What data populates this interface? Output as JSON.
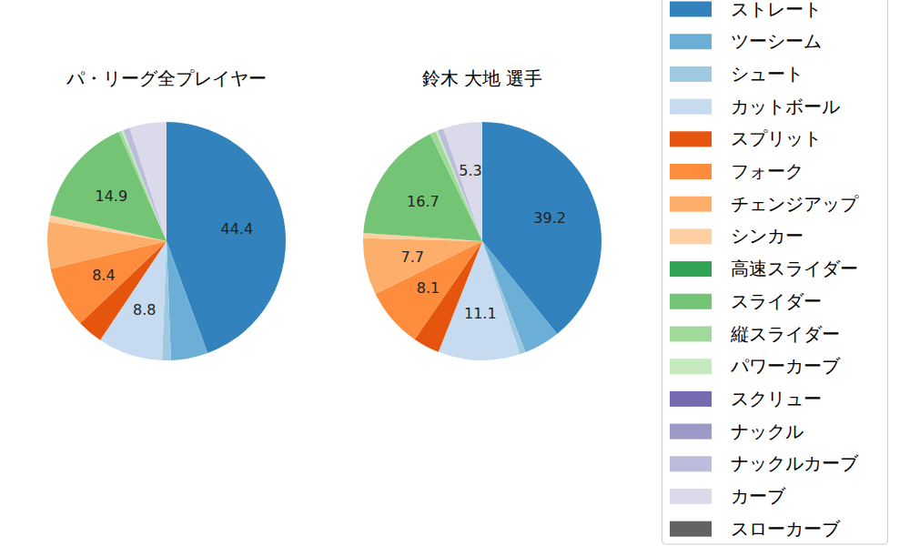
{
  "chart_data": [
    {
      "type": "pie",
      "title": "パ・リーグ全プレイヤー",
      "categories": [
        "ストレート",
        "ツーシーム",
        "シュート",
        "カットボール",
        "スプリット",
        "フォーク",
        "チェンジアップ",
        "シンカー",
        "高速スライダー",
        "スライダー",
        "縦スライダー",
        "パワーカーブ",
        "スクリュー",
        "ナックル",
        "ナックルカーブ",
        "カーブ",
        "スローカーブ"
      ],
      "values": [
        44.4,
        5.0,
        1.2,
        8.8,
        3.5,
        8.4,
        6.3,
        0.9,
        0,
        14.9,
        0.4,
        0.3,
        0,
        0,
        0.9,
        5.0,
        0
      ],
      "value_labels": [
        "44.4",
        null,
        null,
        "8.8",
        null,
        "8.4",
        null,
        null,
        null,
        "14.9",
        null,
        null,
        null,
        null,
        null,
        null,
        null
      ],
      "colors": [
        "#3182bd",
        "#6baed6",
        "#9ecae1",
        "#c6dbef",
        "#e6550d",
        "#fd8d3c",
        "#fdae6b",
        "#fdd0a2",
        "#31a354",
        "#74c476",
        "#a1d99b",
        "#c7e9c0",
        "#756bb1",
        "#9e9ac8",
        "#bcbddc",
        "#dadaeb",
        "#636363"
      ],
      "data_labels": true
    },
    {
      "type": "pie",
      "title": "鈴木 大地  選手",
      "categories": [
        "ストレート",
        "ツーシーム",
        "シュート",
        "カットボール",
        "スプリット",
        "フォーク",
        "チェンジアップ",
        "シンカー",
        "高速スライダー",
        "スライダー",
        "縦スライダー",
        "パワーカーブ",
        "スクリュー",
        "ナックル",
        "ナックルカーブ",
        "カーブ",
        "スローカーブ"
      ],
      "values": [
        39.2,
        4.9,
        0.8,
        11.1,
        3.6,
        8.1,
        7.7,
        0.7,
        0,
        16.7,
        0.8,
        0.3,
        0,
        0,
        0.8,
        5.3,
        0
      ],
      "value_labels": [
        "39.2",
        null,
        null,
        "11.1",
        null,
        "8.1",
        "7.7",
        null,
        null,
        "16.7",
        null,
        null,
        null,
        null,
        null,
        "5.3",
        null
      ],
      "colors": [
        "#3182bd",
        "#6baed6",
        "#9ecae1",
        "#c6dbef",
        "#e6550d",
        "#fd8d3c",
        "#fdae6b",
        "#fdd0a2",
        "#31a354",
        "#74c476",
        "#a1d99b",
        "#c7e9c0",
        "#756bb1",
        "#9e9ac8",
        "#bcbddc",
        "#dadaeb",
        "#636363"
      ],
      "data_labels": true,
      "legend": "right"
    }
  ]
}
